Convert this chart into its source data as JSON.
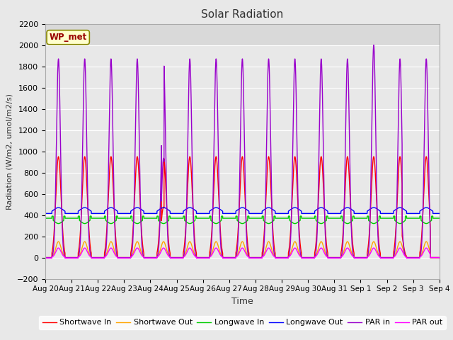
{
  "title": "Solar Radiation",
  "xlabel": "Time",
  "ylabel": "Radiation (W/m2, umol/m2/s)",
  "ylim": [
    -200,
    2200
  ],
  "n_days": 15,
  "x_tick_labels": [
    "Aug 20",
    "Aug 21",
    "Aug 22",
    "Aug 23",
    "Aug 24",
    "Aug 25",
    "Aug 26",
    "Aug 27",
    "Aug 28",
    "Aug 29",
    "Aug 30",
    "Aug 31",
    "Sep 1",
    "Sep 2",
    "Sep 3",
    "Sep 4"
  ],
  "legend_entries": [
    "Shortwave In",
    "Shortwave Out",
    "Longwave In",
    "Longwave Out",
    "PAR in",
    "PAR out"
  ],
  "legend_colors": [
    "#ff0000",
    "#ffa500",
    "#00cc00",
    "#0000ff",
    "#9900cc",
    "#ff00ff"
  ],
  "wp_met_box_color": "#ffffcc",
  "wp_met_text_color": "#990000",
  "fig_facecolor": "#e8e8e8",
  "ax_facecolor": "#e8e8e8",
  "grid_color": "#ffffff",
  "shortwave_in_peak": 950,
  "shortwave_out_peak": 150,
  "longwave_in_base": 370,
  "longwave_in_amp": 50,
  "longwave_out_base": 415,
  "longwave_out_amp": 55,
  "par_in_peak": 1870,
  "par_out_peak": 90,
  "pts_per_day": 1440
}
